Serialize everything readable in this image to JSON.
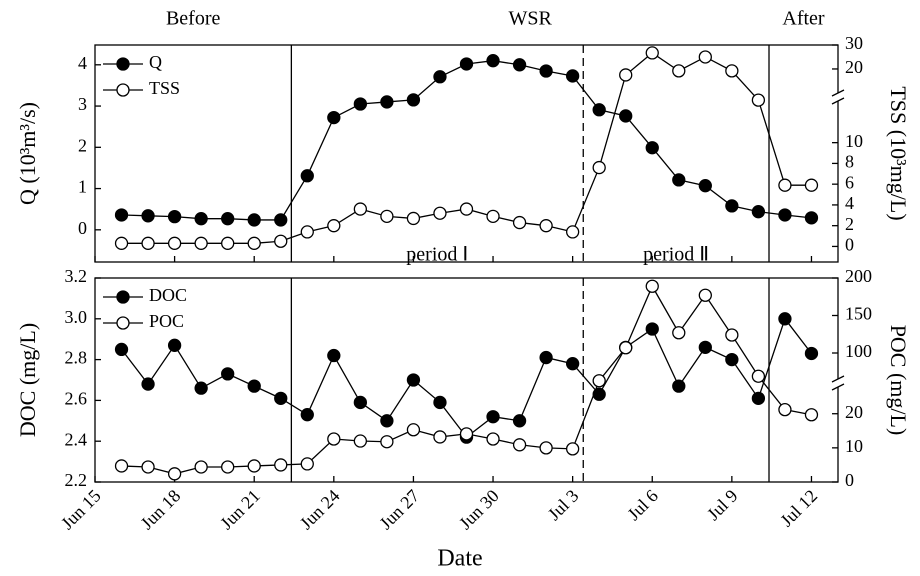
{
  "chart_data": {
    "type": "line",
    "x_label": "Date",
    "xlim": [
      0,
      28
    ],
    "xticks": [
      {
        "value": 0,
        "label": "Jun 15"
      },
      {
        "value": 3,
        "label": "Jun 18"
      },
      {
        "value": 6,
        "label": "Jun 21"
      },
      {
        "value": 9,
        "label": "Jun 24"
      },
      {
        "value": 12,
        "label": "Jun 27"
      },
      {
        "value": 15,
        "label": "Jun 30"
      },
      {
        "value": 18,
        "label": "Jul 3"
      },
      {
        "value": 21,
        "label": "Jul 6"
      },
      {
        "value": 24,
        "label": "Jul 9"
      },
      {
        "value": 27,
        "label": "Jul 12"
      }
    ],
    "x": [
      1,
      2,
      3,
      4,
      5,
      6,
      7,
      8,
      9,
      10,
      11,
      12,
      13,
      14,
      15,
      16,
      17,
      18,
      19,
      20,
      21,
      22,
      23,
      24,
      25,
      26,
      27
    ],
    "phases": [
      "Before",
      "WSR",
      "After"
    ],
    "boundaries": [
      {
        "x": 7.4,
        "style": "solid"
      },
      {
        "x": 18.4,
        "style": "dashed"
      },
      {
        "x": 25.4,
        "style": "solid"
      }
    ],
    "periods": [
      "period Ⅰ",
      "period Ⅱ"
    ],
    "panels": [
      {
        "y_label": "Q (10³m³/s)",
        "y2_label": "TSS (10³mg/L)",
        "ylim": [
          -0.78,
          4.48
        ],
        "yticks": [
          0,
          1,
          2,
          3,
          4
        ],
        "y2_segments": [
          {
            "lim": [
              -1.5,
              14.4
            ],
            "ticks": [
              0,
              2,
              4,
              6,
              8,
              10
            ]
          },
          {
            "lim": [
              8.3,
              30
            ],
            "ticks": [
              20,
              30
            ]
          }
        ],
        "series": [
          {
            "name": "Q",
            "color": "#000000",
            "marker": "filled",
            "axis": "y",
            "values": [
              0.36,
              0.34,
              0.32,
              0.27,
              0.27,
              0.24,
              0.24,
              1.31,
              2.72,
              3.05,
              3.1,
              3.15,
              3.71,
              4.02,
              4.1,
              4.0,
              3.85,
              3.73,
              2.91,
              2.76,
              1.99,
              1.21,
              1.07,
              0.58,
              0.44,
              0.36,
              0.29
            ]
          },
          {
            "name": "TSS",
            "color": "#000000",
            "marker": "open",
            "axis": "y2",
            "values": [
              0.3,
              0.3,
              0.3,
              0.3,
              0.3,
              0.3,
              0.5,
              1.4,
              2.0,
              3.6,
              2.9,
              2.7,
              3.2,
              3.6,
              2.9,
              2.3,
              2.0,
              1.4,
              7.6,
              17.5,
              26.7,
              19.2,
              25,
              19.2,
              14.1,
              5.9,
              5.9
            ]
          }
        ]
      },
      {
        "y_label": "DOC (mg/L)",
        "y2_label": "POC (mg/L)",
        "ylim": [
          2.2,
          3.2
        ],
        "yticks": [
          2.2,
          2.4,
          2.6,
          2.8,
          {
            "value": 3,
            "label": "3.0"
          },
          3.2
        ],
        "y2_segments": [
          {
            "lim": [
              0,
              29
            ],
            "ticks": [
              0,
              10,
              20
            ]
          },
          {
            "lim": [
              60,
              200
            ],
            "ticks": [
              100,
              150,
              200
            ]
          }
        ],
        "series": [
          {
            "name": "DOC",
            "color": "#000000",
            "marker": "filled",
            "axis": "y",
            "values": [
              2.85,
              2.68,
              2.87,
              2.66,
              2.73,
              2.67,
              2.61,
              2.53,
              2.82,
              2.59,
              2.5,
              2.7,
              2.59,
              2.42,
              2.52,
              2.5,
              2.81,
              2.78,
              2.63,
              2.86,
              2.95,
              2.67,
              2.86,
              2.8,
              2.61,
              3.0,
              2.83
            ]
          },
          {
            "name": "POC",
            "color": "#000000",
            "marker": "open",
            "axis": "y2",
            "values": [
              4.7,
              4.4,
              2.4,
              4.4,
              4.4,
              4.7,
              5.0,
              5.3,
              12.6,
              12,
              11.8,
              15.3,
              13.2,
              14.1,
              12.6,
              10.9,
              10,
              9.7,
              63,
              107,
              189,
              127,
              177,
              124,
              69,
              21.2,
              19.7
            ]
          }
        ]
      }
    ]
  }
}
